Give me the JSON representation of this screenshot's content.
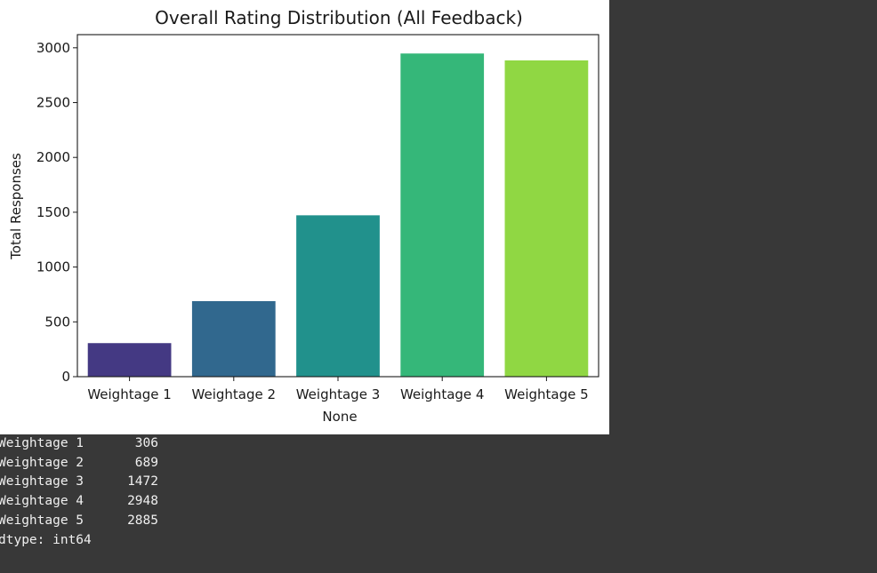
{
  "chart_data": {
    "type": "bar",
    "title": "Overall Rating Distribution (All Feedback)",
    "xlabel": "None",
    "ylabel": "Total Responses",
    "categories": [
      "Weightage 1",
      "Weightage 2",
      "Weightage 3",
      "Weightage 4",
      "Weightage 5"
    ],
    "values": [
      306,
      689,
      1472,
      2948,
      2885
    ],
    "colors": [
      "#443983",
      "#31688e",
      "#21918c",
      "#35b779",
      "#90d743"
    ],
    "ylim": [
      0,
      3120
    ],
    "yticks": [
      0,
      500,
      1000,
      1500,
      2000,
      2500,
      3000
    ],
    "grid": false,
    "palette": "viridis"
  },
  "output": {
    "rows": [
      {
        "name": "Weightage 1",
        "value": "306"
      },
      {
        "name": "Weightage 2",
        "value": "689"
      },
      {
        "name": "Weightage 3",
        "value": "1472"
      },
      {
        "name": "Weightage 4",
        "value": "2948"
      },
      {
        "name": "Weightage 5",
        "value": "2885"
      }
    ],
    "dtype": "dtype: int64"
  },
  "colors": {
    "background": "#383838",
    "figure_bg": "#ffffff",
    "text": "#1a1a1a",
    "output_text": "#f0f0f0"
  }
}
